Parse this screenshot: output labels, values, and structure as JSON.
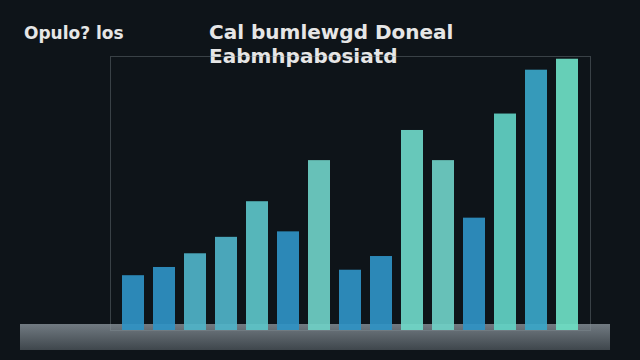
{
  "chart_data": {
    "type": "bar",
    "title": "Cal bumlewgd Doneal Eabmhpabosiatd",
    "subtitle": "Opulo? los",
    "categories": [
      null,
      null,
      null,
      null,
      null,
      null,
      null,
      null,
      null,
      null,
      null,
      null,
      null,
      null,
      null
    ],
    "values": [
      20,
      23,
      28,
      34,
      47,
      36,
      62,
      22,
      27,
      73,
      62,
      41,
      79,
      95,
      99
    ],
    "colors": [
      "#2f93c4",
      "#2f93c4",
      "#4fb3c8",
      "#4fb3c8",
      "#5cc4c8",
      "#2f93c4",
      "#6fd0c6",
      "#2f93c4",
      "#2f93c4",
      "#6fd8c8",
      "#6fd0c6",
      "#2f93c4",
      "#62d2c4",
      "#3aa6c8",
      "#6ee0c4"
    ],
    "ylim": [
      0,
      100
    ],
    "tick_labels": false,
    "grid": false
  }
}
